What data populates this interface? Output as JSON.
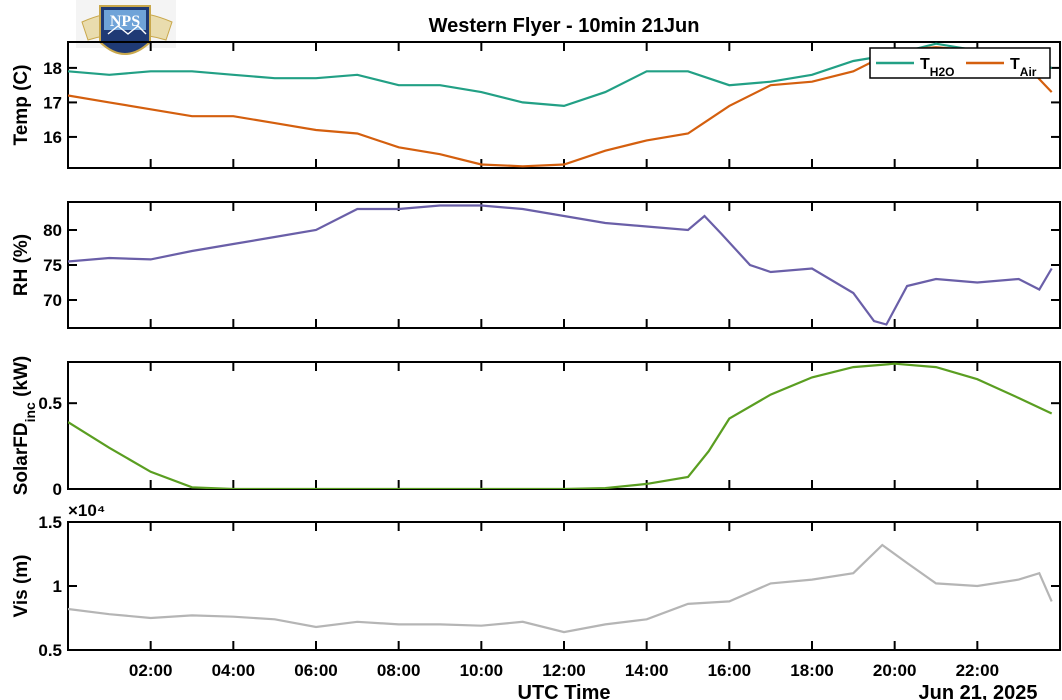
{
  "logo": {
    "text": "NPS",
    "colors": {
      "gold": "#c9a84c",
      "navy": "#1f3a75",
      "sky": "#6fa3d8"
    }
  },
  "title": "Western Flyer - 10min 21Jun",
  "xaxis": {
    "label": "UTC Time",
    "date_label": "Jun 21, 2025",
    "ticks": [
      "02:00",
      "04:00",
      "06:00",
      "08:00",
      "10:00",
      "12:00",
      "14:00",
      "16:00",
      "18:00",
      "20:00",
      "22:00"
    ]
  },
  "chart_data": [
    {
      "type": "line",
      "ylabel": "Temp (C)",
      "ylim": [
        15.1,
        18.75
      ],
      "yticks": [
        "16",
        "17",
        "18"
      ],
      "legend": {
        "placement": "top-right",
        "entries": [
          {
            "base": "T",
            "sub": "H2O"
          },
          {
            "base": "T",
            "sub": "Air"
          }
        ]
      },
      "series": [
        {
          "name": "TH2O",
          "color": "#22a085",
          "x": [
            0,
            1,
            2,
            3,
            4,
            5,
            6,
            7,
            8,
            9,
            10,
            11,
            12,
            13,
            14,
            15,
            16,
            17,
            18,
            19,
            20,
            21,
            22,
            23,
            23.8
          ],
          "y": [
            17.9,
            17.8,
            17.9,
            17.9,
            17.8,
            17.7,
            17.7,
            17.8,
            17.5,
            17.5,
            17.3,
            17.0,
            16.9,
            17.3,
            17.9,
            17.9,
            17.5,
            17.6,
            17.8,
            18.2,
            18.4,
            18.7,
            18.5,
            18.2,
            18.0
          ]
        },
        {
          "name": "TAir",
          "color": "#d45f0e",
          "x": [
            0,
            1,
            2,
            3,
            4,
            5,
            6,
            7,
            8,
            9,
            10,
            11,
            12,
            13,
            14,
            15,
            16,
            17,
            18,
            19,
            20,
            21,
            22,
            23,
            23.8
          ],
          "y": [
            17.2,
            17.0,
            16.8,
            16.6,
            16.6,
            16.4,
            16.2,
            16.1,
            15.7,
            15.5,
            15.2,
            15.15,
            15.2,
            15.6,
            15.9,
            16.1,
            16.9,
            17.5,
            17.6,
            17.9,
            18.5,
            18.6,
            18.5,
            18.3,
            17.3
          ]
        }
      ]
    },
    {
      "type": "line",
      "ylabel": "RH (%)",
      "ylim": [
        66,
        84
      ],
      "yticks": [
        "70",
        "75",
        "80"
      ],
      "series": [
        {
          "color": "#6a5fa8",
          "x": [
            0,
            1,
            2,
            3,
            4,
            5,
            6,
            7,
            8,
            9,
            10,
            11,
            12,
            13,
            14,
            15,
            15.4,
            15.8,
            16.5,
            17,
            18,
            19,
            19.5,
            19.8,
            20.3,
            21,
            22,
            23,
            23.5,
            23.8
          ],
          "y": [
            75.5,
            76,
            75.8,
            77,
            78,
            79,
            80,
            83,
            83,
            83.5,
            83.5,
            83,
            82,
            81,
            80.5,
            80,
            82,
            79.5,
            75,
            74,
            74.5,
            71,
            67,
            66.5,
            72,
            73,
            72.5,
            73,
            71.5,
            74.5
          ]
        }
      ]
    },
    {
      "type": "line",
      "ylabel": "SolarFD",
      "ylabel_sub": "inc",
      "ylabel_unit": " (kW)",
      "ylim": [
        0,
        0.74
      ],
      "yticks": [
        "0",
        "0.5"
      ],
      "series": [
        {
          "color": "#5a9e21",
          "x": [
            0,
            1,
            2,
            3,
            4,
            6,
            8,
            10,
            12,
            13,
            14,
            15,
            15.5,
            16,
            17,
            18,
            19,
            20,
            21,
            22,
            23,
            23.8
          ],
          "y": [
            0.39,
            0.24,
            0.1,
            0.01,
            0,
            0,
            0,
            0,
            0,
            0.005,
            0.03,
            0.07,
            0.22,
            0.41,
            0.55,
            0.65,
            0.71,
            0.73,
            0.71,
            0.64,
            0.53,
            0.44
          ]
        }
      ]
    },
    {
      "type": "line",
      "ylabel": "Vis (m)",
      "exponent": "×10⁴",
      "ylim": [
        0.5,
        1.5
      ],
      "yticks": [
        "0.5",
        "1",
        "1.5"
      ],
      "series": [
        {
          "color": "#b5b5b5",
          "x": [
            0,
            1,
            2,
            3,
            4,
            5,
            6,
            7,
            8,
            9,
            10,
            11,
            12,
            13,
            14,
            15,
            16,
            17,
            18,
            19,
            19.7,
            20.3,
            21,
            22,
            23,
            23.5,
            23.8
          ],
          "y": [
            0.82,
            0.78,
            0.75,
            0.77,
            0.76,
            0.74,
            0.68,
            0.72,
            0.7,
            0.7,
            0.69,
            0.72,
            0.64,
            0.7,
            0.74,
            0.86,
            0.88,
            1.02,
            1.05,
            1.1,
            1.32,
            1.18,
            1.02,
            1.0,
            1.05,
            1.1,
            0.88
          ]
        }
      ]
    }
  ]
}
